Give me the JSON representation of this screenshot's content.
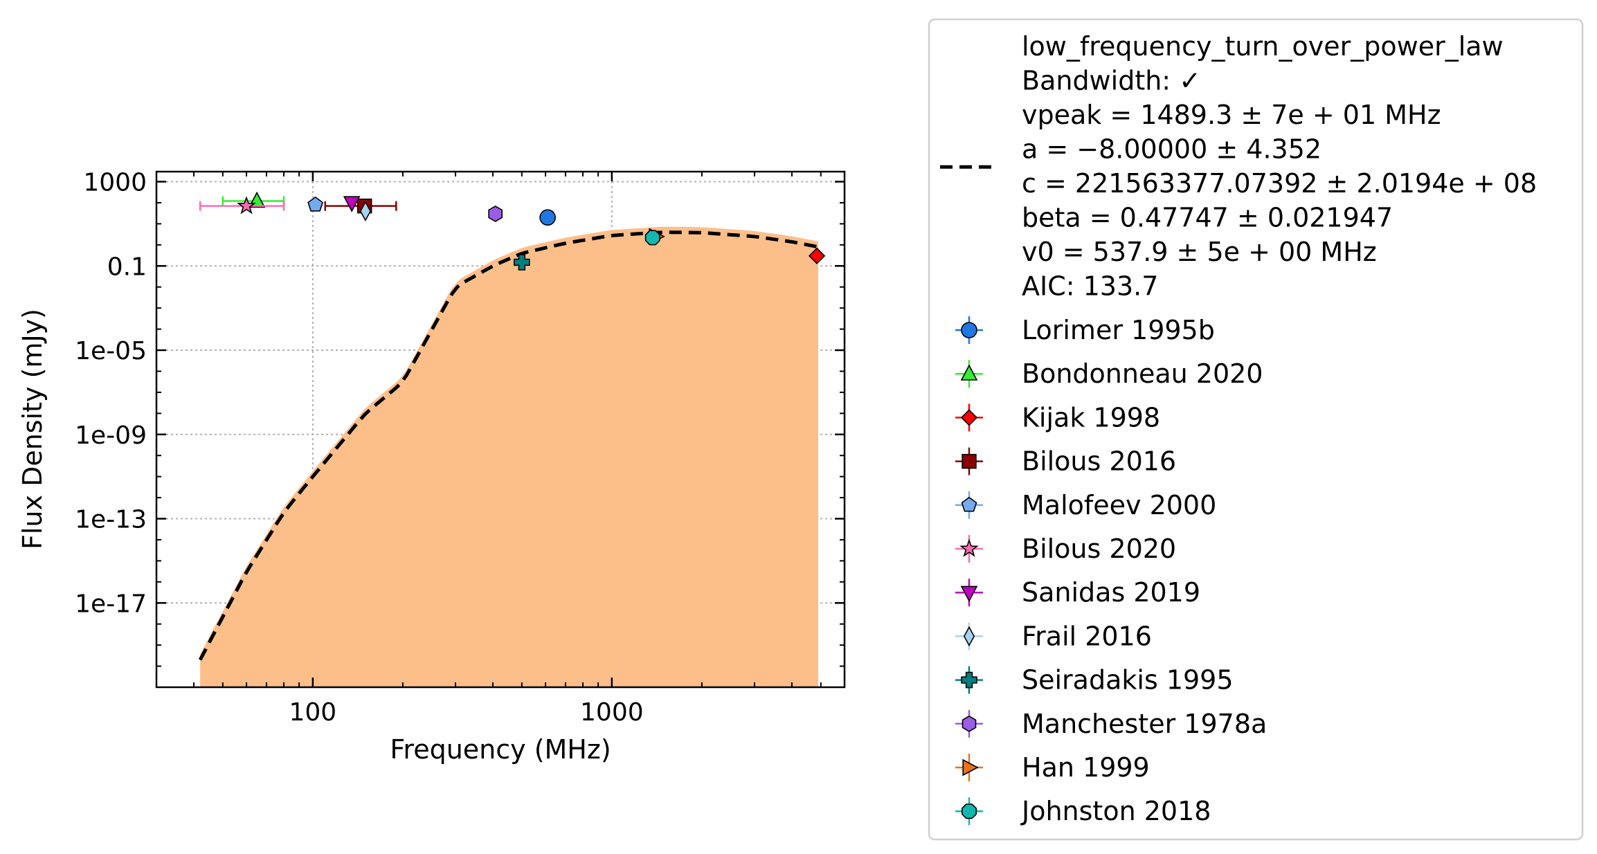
{
  "chart_data": {
    "type": "scatter",
    "xlabel": "Frequency (MHz)",
    "ylabel": "Flux Density (mJy)",
    "xscale": "log",
    "yscale": "log",
    "xlim": [
      30,
      6000
    ],
    "ylim": [
      1e-21,
      3000
    ],
    "xticks": [
      {
        "value": 100,
        "label": "100"
      },
      {
        "value": 1000,
        "label": "1000"
      }
    ],
    "yticks": [
      {
        "value": 1000,
        "label": "1000"
      },
      {
        "value": 0.1,
        "label": "0.1"
      },
      {
        "value": 1e-05,
        "label": "1e-05"
      },
      {
        "value": 1e-09,
        "label": "1e-09"
      },
      {
        "value": 1e-13,
        "label": "1e-13"
      },
      {
        "value": 1e-17,
        "label": "1e-17"
      }
    ],
    "grid": true,
    "legend_position": "outside-right",
    "fit": {
      "name": "low_frequency_turn_over_power_law",
      "lines": [
        "low_frequency_turn_over_power_law",
        "Bandwidth: ✓",
        "vpeak = 1489.3 ± 7e + 01 MHz",
        "a = −8.00000 ± 4.352",
        "c = 221563377.07392 ± 2.0194e + 08",
        "beta = 0.47747 ± 0.021947",
        "v0 = 537.9 ± 5e + 00 MHz",
        "AIC: 133.7"
      ],
      "line_color": "#000000",
      "band_color": "#fdbf8a",
      "x_range": [
        42,
        4900
      ],
      "peak_x": 1489.3,
      "peak_y": 4.0,
      "x": [
        42,
        60,
        80,
        100,
        150,
        200,
        300,
        400,
        500,
        700,
        1000,
        1489.3,
        2000,
        3000,
        4000,
        4900
      ],
      "y": [
        2e-20,
        3e-16,
        2e-13,
        1e-11,
        1e-08,
        3e-07,
        0.01,
        0.1,
        0.4,
        1.2,
        2.8,
        4.0,
        3.8,
        2.5,
        1.4,
        0.8
      ]
    },
    "series": [
      {
        "name": "Lorimer 1995b",
        "marker": "circle",
        "color": "#1f77e4",
        "points": [
          {
            "x": 610,
            "y": 20
          }
        ]
      },
      {
        "name": "Bondonneau 2020",
        "marker": "triangle-up",
        "color": "#33ee33",
        "points": [
          {
            "x": 65,
            "y": 120,
            "xerr": [
              50,
              80
            ]
          }
        ]
      },
      {
        "name": "Kijak 1998",
        "marker": "diamond",
        "color": "#ff0000",
        "points": [
          {
            "x": 4850,
            "y": 0.3
          }
        ]
      },
      {
        "name": "Bilous 2016",
        "marker": "square",
        "color": "#8b0000",
        "points": [
          {
            "x": 149,
            "y": 70,
            "xerr": [
              110,
              190
            ]
          }
        ]
      },
      {
        "name": "Malofeev 2000",
        "marker": "pentagon",
        "color": "#74aaf0",
        "points": [
          {
            "x": 102,
            "y": 80
          }
        ]
      },
      {
        "name": "Bilous 2020",
        "marker": "star",
        "color": "#ff69b4",
        "points": [
          {
            "x": 60,
            "y": 70,
            "xerr": [
              42,
              80
            ]
          }
        ]
      },
      {
        "name": "Sanidas 2019",
        "marker": "triangle-down",
        "color": "#c000c0",
        "points": [
          {
            "x": 135,
            "y": 100
          }
        ]
      },
      {
        "name": "Frail 2016",
        "marker": "thin-diamond",
        "color": "#a8d2f4",
        "points": [
          {
            "x": 150,
            "y": 40
          }
        ]
      },
      {
        "name": "Seiradakis 1995",
        "marker": "plus",
        "color": "#008080",
        "points": [
          {
            "x": 500,
            "y": 0.15
          }
        ]
      },
      {
        "name": "Manchester 1978a",
        "marker": "hexagon",
        "color": "#9b5de5",
        "points": [
          {
            "x": 408,
            "y": 30
          }
        ]
      },
      {
        "name": "Han 1999",
        "marker": "triangle-right",
        "color": "#e8731a",
        "points": [
          {
            "x": 1400,
            "y": 2.5
          }
        ]
      },
      {
        "name": "Johnston 2018",
        "marker": "octagon",
        "color": "#12b8b0",
        "points": [
          {
            "x": 1369,
            "y": 2.2
          }
        ]
      }
    ]
  }
}
